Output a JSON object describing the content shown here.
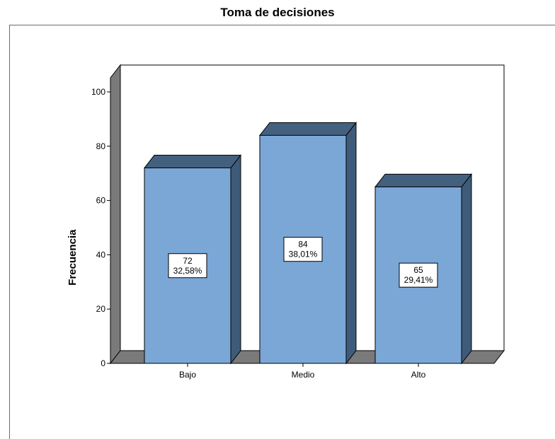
{
  "chart_data": {
    "type": "bar",
    "title": "Toma de decisiones",
    "xlabel": "",
    "ylabel": "Frecuencia",
    "categories": [
      "Bajo",
      "Medio",
      "Alto"
    ],
    "values": [
      72,
      84,
      65
    ],
    "data_labels": [
      {
        "count": "72",
        "percent": "32,58%"
      },
      {
        "count": "84",
        "percent": "38,01%"
      },
      {
        "count": "65",
        "percent": "29,41%"
      }
    ],
    "ylim": [
      0,
      100
    ],
    "yticks": [
      0,
      20,
      40,
      60,
      80,
      100
    ],
    "grid": false,
    "legend": "none",
    "bar_front_color": "#7ba7d6",
    "bar_top_color": "#43607f",
    "bar_side_color": "#3f5b7a",
    "wall_color": "#7a7a7a",
    "floor_color": "#7a7a7a"
  }
}
